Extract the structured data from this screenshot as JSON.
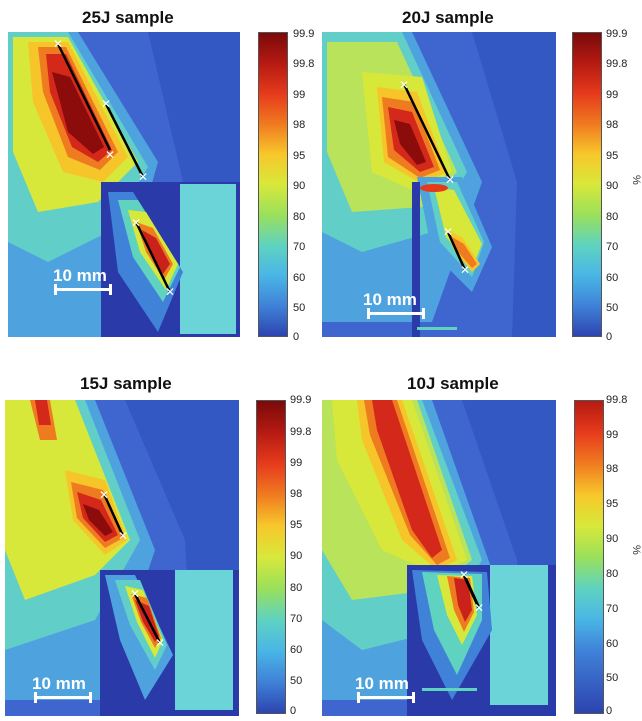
{
  "panels": [
    {
      "title": "25J sample",
      "scale": "10 mm",
      "unit": ""
    },
    {
      "title": "20J sample",
      "scale": "10 mm",
      "unit": "%"
    },
    {
      "title": "15J sample",
      "scale": "10 mm",
      "unit": ""
    },
    {
      "title": "10J sample",
      "scale": "10 mm",
      "unit": "%"
    }
  ],
  "colorbar": {
    "ticks": [
      "99.9",
      "99.8",
      "99",
      "98",
      "95",
      "90",
      "80",
      "70",
      "60",
      "50",
      "0"
    ],
    "colors": [
      "#7a0a0a",
      "#b51a12",
      "#e63a1c",
      "#f07a20",
      "#f7c72a",
      "#d8e83a",
      "#9ae05a",
      "#5fd3c0",
      "#49b6e6",
      "#3f82d8",
      "#2d44b0"
    ]
  }
}
